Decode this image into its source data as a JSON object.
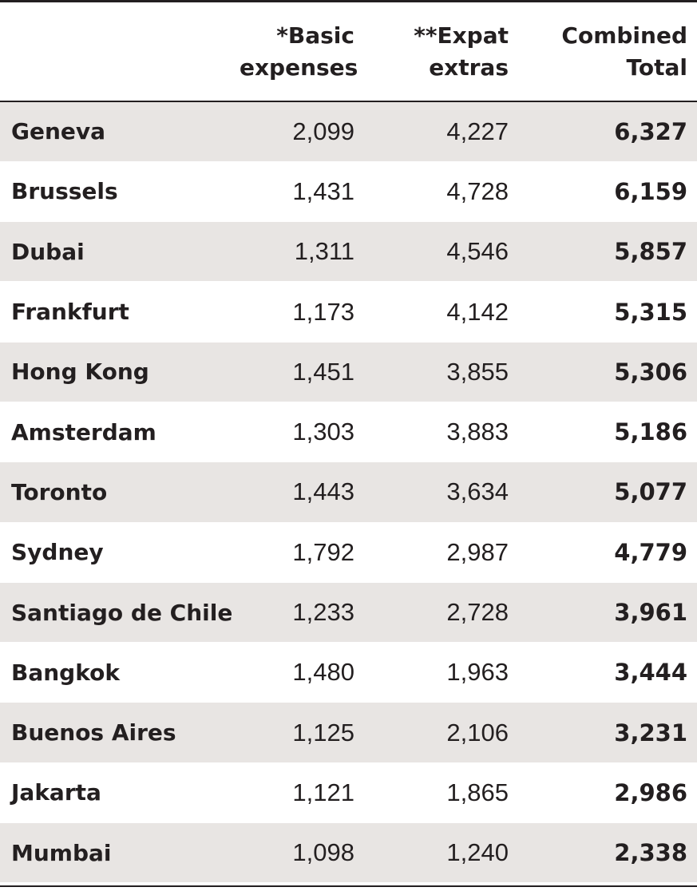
{
  "table": {
    "headers": {
      "city": "",
      "basic_line1": "*Basic",
      "basic_line2": "expenses",
      "expat_line1": "**Expat",
      "expat_line2": "extras",
      "total_line1": "Combined",
      "total_line2": "Total"
    },
    "rows": [
      {
        "city": "Geneva",
        "basic": "2,099",
        "expat": "4,227",
        "total": "6,327"
      },
      {
        "city": "Brussels",
        "basic": "1,431",
        "expat": "4,728",
        "total": "6,159"
      },
      {
        "city": "Dubai",
        "basic": "1,311",
        "expat": "4,546",
        "total": "5,857"
      },
      {
        "city": "Frankfurt",
        "basic": "1,173",
        "expat": "4,142",
        "total": "5,315"
      },
      {
        "city": "Hong Kong",
        "basic": "1,451",
        "expat": "3,855",
        "total": "5,306"
      },
      {
        "city": "Amsterdam",
        "basic": "1,303",
        "expat": "3,883",
        "total": "5,186"
      },
      {
        "city": "Toronto",
        "basic": "1,443",
        "expat": "3,634",
        "total": "5,077"
      },
      {
        "city": "Sydney",
        "basic": "1,792",
        "expat": "2,987",
        "total": "4,779"
      },
      {
        "city": "Santiago de Chile",
        "basic": "1,233",
        "expat": "2,728",
        "total": "3,961"
      },
      {
        "city": "Bangkok",
        "basic": "1,480",
        "expat": "1,963",
        "total": "3,444"
      },
      {
        "city": "Buenos Aires",
        "basic": "1,125",
        "expat": "2,106",
        "total": "3,231"
      },
      {
        "city": "Jakarta",
        "basic": "1,121",
        "expat": "1,865",
        "total": "2,986"
      },
      {
        "city": "Mumbai",
        "basic": "1,098",
        "expat": "1,240",
        "total": "2,338"
      }
    ]
  },
  "colors": {
    "stripe": "#e8e5e3",
    "rule": "#231f20",
    "text": "#231f20"
  }
}
